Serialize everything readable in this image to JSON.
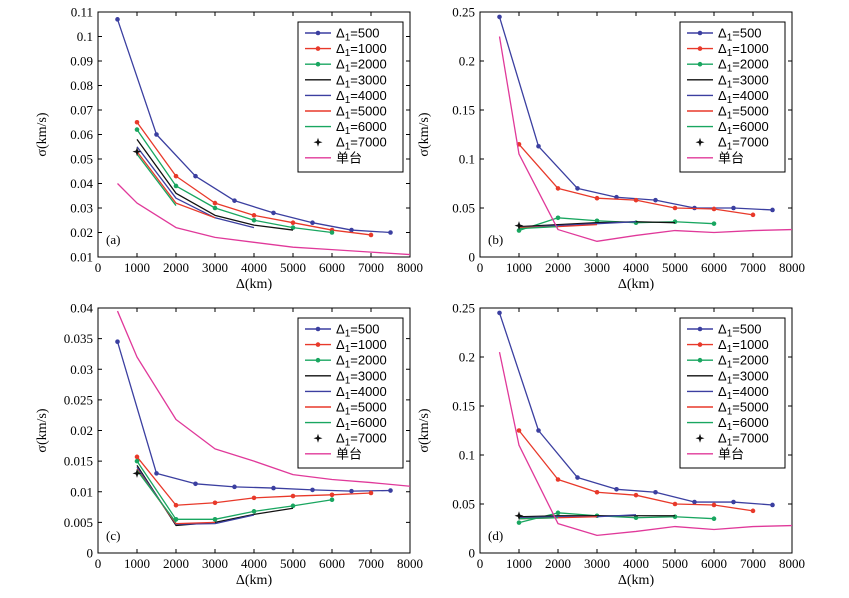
{
  "chart_data": [
    {
      "type": "line",
      "panel_label": "(a)",
      "xlabel": "Δ(km)",
      "ylabel": "σ(km/s)",
      "xlim": [
        0,
        8000
      ],
      "ylim": [
        0.01,
        0.11
      ],
      "xticks": [
        0,
        1000,
        2000,
        3000,
        4000,
        5000,
        6000,
        7000,
        8000
      ],
      "yticks": [
        0.01,
        0.02,
        0.03,
        0.04,
        0.05,
        0.06,
        0.07,
        0.08,
        0.09,
        0.1,
        0.11
      ],
      "ytick_labels": [
        "0.01",
        "0.02",
        "0.03",
        "0.04",
        "0.05",
        "0.06",
        "0.07",
        "0.08",
        "0.09",
        "0.1",
        "0.11"
      ],
      "legend_position": "top-right",
      "series": [
        {
          "name": "Δ1=500",
          "sub": "1",
          "label_suffix": "=500",
          "color": "#3b3fa0",
          "marker": "dot",
          "x": [
            500,
            1500,
            2500,
            3500,
            4500,
            5500,
            6500,
            7500
          ],
          "y": [
            0.107,
            0.06,
            0.043,
            0.033,
            0.028,
            0.024,
            0.021,
            0.02
          ]
        },
        {
          "name": "Δ1=1000",
          "sub": "1",
          "label_suffix": "=1000",
          "color": "#e8392a",
          "marker": "dot",
          "x": [
            1000,
            2000,
            3000,
            4000,
            5000,
            6000,
            7000
          ],
          "y": [
            0.065,
            0.043,
            0.032,
            0.027,
            0.024,
            0.021,
            0.019
          ]
        },
        {
          "name": "Δ1=2000",
          "sub": "1",
          "label_suffix": "=2000",
          "color": "#19a660",
          "marker": "dot",
          "x": [
            1000,
            2000,
            3000,
            4000,
            5000,
            6000
          ],
          "y": [
            0.062,
            0.039,
            0.03,
            0.025,
            0.022,
            0.02
          ]
        },
        {
          "name": "Δ1=3000",
          "sub": "1",
          "label_suffix": "=3000",
          "color": "#111111",
          "marker": "none",
          "x": [
            1000,
            2000,
            3000,
            4000,
            5000
          ],
          "y": [
            0.058,
            0.036,
            0.027,
            0.023,
            0.021
          ]
        },
        {
          "name": "Δ1=4000",
          "sub": "1",
          "label_suffix": "=4000",
          "color": "#3b3fa0",
          "marker": "none",
          "x": [
            1000,
            2000,
            3000,
            4000
          ],
          "y": [
            0.055,
            0.034,
            0.026,
            0.022
          ]
        },
        {
          "name": "Δ1=5000",
          "sub": "1",
          "label_suffix": "=5000",
          "color": "#e8392a",
          "marker": "none",
          "x": [
            1000,
            2000,
            3000
          ],
          "y": [
            0.053,
            0.032,
            0.026
          ]
        },
        {
          "name": "Δ1=6000",
          "sub": "1",
          "label_suffix": "=6000",
          "color": "#19a660",
          "marker": "none",
          "x": [
            1000,
            2000
          ],
          "y": [
            0.052,
            0.031
          ]
        },
        {
          "name": "Δ1=7000",
          "sub": "1",
          "label_suffix": "=7000",
          "color": "#111111",
          "marker": "star",
          "x": [
            1000
          ],
          "y": [
            0.053
          ]
        },
        {
          "name": "单台",
          "sub": "",
          "label_suffix": "单台",
          "color": "#e0399a",
          "marker": "none",
          "x": [
            500,
            1000,
            2000,
            3000,
            4000,
            5000,
            6000,
            7000,
            8000
          ],
          "y": [
            0.04,
            0.032,
            0.022,
            0.018,
            0.016,
            0.014,
            0.013,
            0.012,
            0.011
          ]
        }
      ]
    },
    {
      "type": "line",
      "panel_label": "(b)",
      "xlabel": "Δ(km)",
      "ylabel": "σ(km/s)",
      "xlim": [
        0,
        8000
      ],
      "ylim": [
        0,
        0.25
      ],
      "xticks": [
        0,
        1000,
        2000,
        3000,
        4000,
        5000,
        6000,
        7000,
        8000
      ],
      "yticks": [
        0,
        0.05,
        0.1,
        0.15,
        0.2,
        0.25
      ],
      "ytick_labels": [
        "0",
        "0.05",
        "0.1",
        "0.15",
        "0.2",
        "0.25"
      ],
      "legend_position": "top-right",
      "series": [
        {
          "name": "Δ1=500",
          "sub": "1",
          "label_suffix": "=500",
          "color": "#3b3fa0",
          "marker": "dot",
          "x": [
            500,
            1500,
            2500,
            3500,
            4500,
            5500,
            6500,
            7500
          ],
          "y": [
            0.245,
            0.113,
            0.07,
            0.061,
            0.058,
            0.05,
            0.05,
            0.048
          ]
        },
        {
          "name": "Δ1=1000",
          "sub": "1",
          "label_suffix": "=1000",
          "color": "#e8392a",
          "marker": "dot",
          "x": [
            1000,
            2000,
            3000,
            4000,
            5000,
            6000,
            7000
          ],
          "y": [
            0.115,
            0.07,
            0.06,
            0.058,
            0.05,
            0.049,
            0.043
          ]
        },
        {
          "name": "Δ1=2000",
          "sub": "1",
          "label_suffix": "=2000",
          "color": "#19a660",
          "marker": "dot",
          "x": [
            1000,
            2000,
            3000,
            4000,
            5000,
            6000
          ],
          "y": [
            0.027,
            0.04,
            0.037,
            0.035,
            0.036,
            0.034
          ]
        },
        {
          "name": "Δ1=3000",
          "sub": "1",
          "label_suffix": "=3000",
          "color": "#111111",
          "marker": "none",
          "x": [
            1000,
            2000,
            3000,
            4000,
            5000
          ],
          "y": [
            0.031,
            0.033,
            0.035,
            0.036,
            0.035
          ]
        },
        {
          "name": "Δ1=4000",
          "sub": "1",
          "label_suffix": "=4000",
          "color": "#3b3fa0",
          "marker": "none",
          "x": [
            1000,
            2000,
            3000,
            4000
          ],
          "y": [
            0.03,
            0.032,
            0.034,
            0.036
          ]
        },
        {
          "name": "Δ1=5000",
          "sub": "1",
          "label_suffix": "=5000",
          "color": "#e8392a",
          "marker": "none",
          "x": [
            1000,
            2000,
            3000
          ],
          "y": [
            0.03,
            0.031,
            0.033
          ]
        },
        {
          "name": "Δ1=6000",
          "sub": "1",
          "label_suffix": "=6000",
          "color": "#19a660",
          "marker": "none",
          "x": [
            1000,
            2000
          ],
          "y": [
            0.029,
            0.031
          ]
        },
        {
          "name": "Δ1=7000",
          "sub": "1",
          "label_suffix": "=7000",
          "color": "#111111",
          "marker": "star",
          "x": [
            1000
          ],
          "y": [
            0.032
          ]
        },
        {
          "name": "单台",
          "sub": "",
          "label_suffix": "单台",
          "color": "#e0399a",
          "marker": "none",
          "x": [
            500,
            1000,
            2000,
            3000,
            4000,
            5000,
            6000,
            7000,
            8000
          ],
          "y": [
            0.225,
            0.105,
            0.028,
            0.016,
            0.022,
            0.027,
            0.025,
            0.027,
            0.028
          ]
        }
      ]
    },
    {
      "type": "line",
      "panel_label": "(c)",
      "xlabel": "Δ(km)",
      "ylabel": "σ(km/s)",
      "xlim": [
        0,
        8000
      ],
      "ylim": [
        0,
        0.04
      ],
      "xticks": [
        0,
        1000,
        2000,
        3000,
        4000,
        5000,
        6000,
        7000,
        8000
      ],
      "yticks": [
        0,
        0.005,
        0.01,
        0.015,
        0.02,
        0.025,
        0.03,
        0.035,
        0.04
      ],
      "ytick_labels": [
        "0",
        "0.005",
        "0.01",
        "0.015",
        "0.02",
        "0.025",
        "0.03",
        "0.035",
        "0.04"
      ],
      "legend_position": "top-right",
      "series": [
        {
          "name": "Δ1=500",
          "sub": "1",
          "label_suffix": "=500",
          "color": "#3b3fa0",
          "marker": "dot",
          "x": [
            500,
            1500,
            2500,
            3500,
            4500,
            5500,
            6500,
            7500
          ],
          "y": [
            0.0345,
            0.013,
            0.0113,
            0.0108,
            0.0106,
            0.0103,
            0.0101,
            0.0102
          ]
        },
        {
          "name": "Δ1=1000",
          "sub": "1",
          "label_suffix": "=1000",
          "color": "#e8392a",
          "marker": "dot",
          "x": [
            1000,
            2000,
            3000,
            4000,
            5000,
            6000,
            7000
          ],
          "y": [
            0.0157,
            0.0078,
            0.0082,
            0.009,
            0.0093,
            0.0095,
            0.0098
          ]
        },
        {
          "name": "Δ1=2000",
          "sub": "1",
          "label_suffix": "=2000",
          "color": "#19a660",
          "marker": "dot",
          "x": [
            1000,
            2000,
            3000,
            4000,
            5000,
            6000
          ],
          "y": [
            0.015,
            0.0055,
            0.0055,
            0.0068,
            0.0077,
            0.0087
          ]
        },
        {
          "name": "Δ1=3000",
          "sub": "1",
          "label_suffix": "=3000",
          "color": "#111111",
          "marker": "none",
          "x": [
            1000,
            2000,
            3000,
            4000,
            5000
          ],
          "y": [
            0.0143,
            0.0045,
            0.005,
            0.0063,
            0.0073
          ]
        },
        {
          "name": "Δ1=4000",
          "sub": "1",
          "label_suffix": "=4000",
          "color": "#3b3fa0",
          "marker": "none",
          "x": [
            1000,
            2000,
            3000,
            4000
          ],
          "y": [
            0.014,
            0.0047,
            0.0048,
            0.0062
          ]
        },
        {
          "name": "Δ1=5000",
          "sub": "1",
          "label_suffix": "=5000",
          "color": "#e8392a",
          "marker": "none",
          "x": [
            1000,
            2000,
            3000
          ],
          "y": [
            0.0137,
            0.0048,
            0.005
          ]
        },
        {
          "name": "Δ1=6000",
          "sub": "1",
          "label_suffix": "=6000",
          "color": "#19a660",
          "marker": "none",
          "x": [
            1000,
            2000
          ],
          "y": [
            0.0135,
            0.005
          ]
        },
        {
          "name": "Δ1=7000",
          "sub": "1",
          "label_suffix": "=7000",
          "color": "#111111",
          "marker": "star",
          "x": [
            1000
          ],
          "y": [
            0.013
          ]
        },
        {
          "name": "单台",
          "sub": "",
          "label_suffix": "单台",
          "color": "#e0399a",
          "marker": "none",
          "x": [
            500,
            1000,
            2000,
            3000,
            4000,
            5000,
            6000,
            7000,
            8000
          ],
          "y": [
            0.0395,
            0.032,
            0.0218,
            0.017,
            0.015,
            0.0128,
            0.012,
            0.0115,
            0.0109
          ]
        }
      ]
    },
    {
      "type": "line",
      "panel_label": "(d)",
      "xlabel": "Δ(km)",
      "ylabel": "σ(km/s)",
      "xlim": [
        0,
        8000
      ],
      "ylim": [
        0,
        0.25
      ],
      "xticks": [
        0,
        1000,
        2000,
        3000,
        4000,
        5000,
        6000,
        7000,
        8000
      ],
      "yticks": [
        0,
        0.05,
        0.1,
        0.15,
        0.2,
        0.25
      ],
      "ytick_labels": [
        "0",
        "0.05",
        "0.1",
        "0.15",
        "0.2",
        "0.25"
      ],
      "legend_position": "top-right",
      "series": [
        {
          "name": "Δ1=500",
          "sub": "1",
          "label_suffix": "=500",
          "color": "#3b3fa0",
          "marker": "dot",
          "x": [
            500,
            1500,
            2500,
            3500,
            4500,
            5500,
            6500,
            7500
          ],
          "y": [
            0.245,
            0.125,
            0.077,
            0.065,
            0.062,
            0.052,
            0.052,
            0.049
          ]
        },
        {
          "name": "Δ1=1000",
          "sub": "1",
          "label_suffix": "=1000",
          "color": "#e8392a",
          "marker": "dot",
          "x": [
            1000,
            2000,
            3000,
            4000,
            5000,
            6000,
            7000
          ],
          "y": [
            0.125,
            0.075,
            0.062,
            0.059,
            0.05,
            0.049,
            0.043
          ]
        },
        {
          "name": "Δ1=2000",
          "sub": "1",
          "label_suffix": "=2000",
          "color": "#19a660",
          "marker": "dot",
          "x": [
            1000,
            2000,
            3000,
            4000,
            5000,
            6000
          ],
          "y": [
            0.031,
            0.041,
            0.038,
            0.036,
            0.037,
            0.035
          ]
        },
        {
          "name": "Δ1=3000",
          "sub": "1",
          "label_suffix": "=3000",
          "color": "#111111",
          "marker": "none",
          "x": [
            1000,
            2000,
            3000,
            4000,
            5000
          ],
          "y": [
            0.037,
            0.038,
            0.038,
            0.038,
            0.038
          ]
        },
        {
          "name": "Δ1=4000",
          "sub": "1",
          "label_suffix": "=4000",
          "color": "#3b3fa0",
          "marker": "none",
          "x": [
            1000,
            2000,
            3000,
            4000
          ],
          "y": [
            0.036,
            0.037,
            0.037,
            0.039
          ]
        },
        {
          "name": "Δ1=5000",
          "sub": "1",
          "label_suffix": "=5000",
          "color": "#e8392a",
          "marker": "none",
          "x": [
            1000,
            2000,
            3000
          ],
          "y": [
            0.035,
            0.036,
            0.037
          ]
        },
        {
          "name": "Δ1=6000",
          "sub": "1",
          "label_suffix": "=6000",
          "color": "#19a660",
          "marker": "none",
          "x": [
            1000,
            2000
          ],
          "y": [
            0.035,
            0.036
          ]
        },
        {
          "name": "Δ1=7000",
          "sub": "1",
          "label_suffix": "=7000",
          "color": "#111111",
          "marker": "star",
          "x": [
            1000
          ],
          "y": [
            0.038
          ]
        },
        {
          "name": "单台",
          "sub": "",
          "label_suffix": "单台",
          "color": "#e0399a",
          "marker": "none",
          "x": [
            500,
            1000,
            2000,
            3000,
            4000,
            5000,
            6000,
            7000,
            8000
          ],
          "y": [
            0.205,
            0.11,
            0.03,
            0.018,
            0.022,
            0.027,
            0.024,
            0.027,
            0.028
          ]
        }
      ]
    }
  ]
}
